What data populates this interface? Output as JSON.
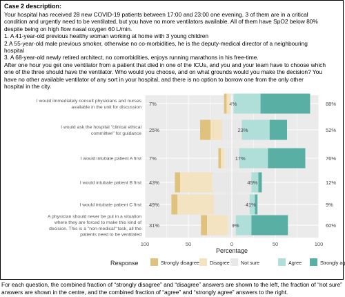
{
  "case": {
    "title": "Case 2 description:",
    "lines": [
      "Your hospital has received 28 new COVID-19 patients between 17:00 and 23:00 one evening. 3 of them are in a critical",
      "condition and urgently need to be ventilated, but you have no more ventilators available. All of them have SpO2 below 80%",
      "despite being on high flow nasal oxygen 60 L/min.",
      "1. A 41-year-old previous healthy woman working at home with 3 young children",
      "2.A 55-year-old male previous smoker, otherwise no co-morbidities, he is the deputy-medical director of a neighbouring",
      "hospital",
      "3. A 68-year-old newly retired architect, no comorbidities, enjoys running marathons in his free-time.",
      "After one hour you get one ventilator from a patient that died in one of the ICUs, and you and your team have to choose which",
      "one of the three should have the ventilator. Who would you choose, and on what grounds would you make the decision? You",
      "have no other available ventilator of any sort in your hospital, and there is no option to borrow one from the only other",
      "hospital in the city."
    ]
  },
  "chart_data": {
    "type": "bar",
    "subtype": "diverging-stacked-likert",
    "xlabel": "Percentage",
    "xticks": [
      "100",
      "50",
      "0",
      "50",
      "100"
    ],
    "xlim": [
      -100,
      100
    ],
    "grid": true,
    "legend": {
      "title": "Response",
      "position": "bottom",
      "entries": [
        "Strongly disagree",
        "Disagree",
        "Not sure",
        "Agree",
        "Strongly agree"
      ]
    },
    "colors": {
      "Strongly disagree": "#dfc27d",
      "Disagree": "#f3e3c0",
      "Not sure": "#e8e8e8",
      "Agree": "#b0dfda",
      "Strongly agree": "#5aafa4",
      "panel": "#ebebeb",
      "grid": "#ffffff"
    },
    "items": [
      {
        "label": [
          "I would immediately consult physicians and nurses",
          "available in the unit for discussion"
        ],
        "values": {
          "Strongly disagree": 3,
          "Disagree": 4,
          "Not sure": 4,
          "Agree": 31,
          "Strongly agree": 57
        },
        "left_label": "7%",
        "center_label": "4%",
        "right_label": "88%"
      },
      {
        "label": [
          "I would ask the hospital \"clinical ethical",
          "committee\" for guidance"
        ],
        "values": {
          "Strongly disagree": 12,
          "Disagree": 13,
          "Not sure": 23,
          "Agree": 32,
          "Strongly agree": 20
        },
        "left_label": "25%",
        "center_label": "23%",
        "right_label": "52%"
      },
      {
        "label": [
          "I would intubate patient A first"
        ],
        "values": {
          "Strongly disagree": 3,
          "Disagree": 4,
          "Not sure": 17,
          "Agree": 33,
          "Strongly agree": 43
        },
        "left_label": "7%",
        "center_label": "17%",
        "right_label": "76%"
      },
      {
        "label": [
          "I would intubate patient B first"
        ],
        "values": {
          "Strongly disagree": 6,
          "Disagree": 37,
          "Not sure": 45,
          "Agree": 8,
          "Strongly agree": 4
        },
        "left_label": "43%",
        "center_label": "45%",
        "right_label": "12%"
      },
      {
        "label": [
          "I would intubate patient C first"
        ],
        "values": {
          "Strongly disagree": 7,
          "Disagree": 42,
          "Not sure": 41,
          "Agree": 6,
          "Strongly agree": 3
        },
        "left_label": "49%",
        "center_label": "41%",
        "right_label": "9%"
      },
      {
        "label": [
          "A physician should never be put in a situation",
          "where they are forced to make this kind of",
          "decision. This is a \"non-medical\" task, all the",
          "patients need to be ventilated"
        ],
        "values": {
          "Strongly disagree": 7,
          "Disagree": 24,
          "Not sure": 9,
          "Agree": 18,
          "Strongly agree": 42
        },
        "left_label": "31%",
        "center_label": "9%",
        "right_label": "60%"
      }
    ]
  },
  "caption": "For each question, the combined fraction of “strongly disagree” and “disagree” answers are shown to the left, the fraction of “not sure” answers are shown in the centre, and the combined fraction of “agree” and “strongly agree” answers to the right."
}
